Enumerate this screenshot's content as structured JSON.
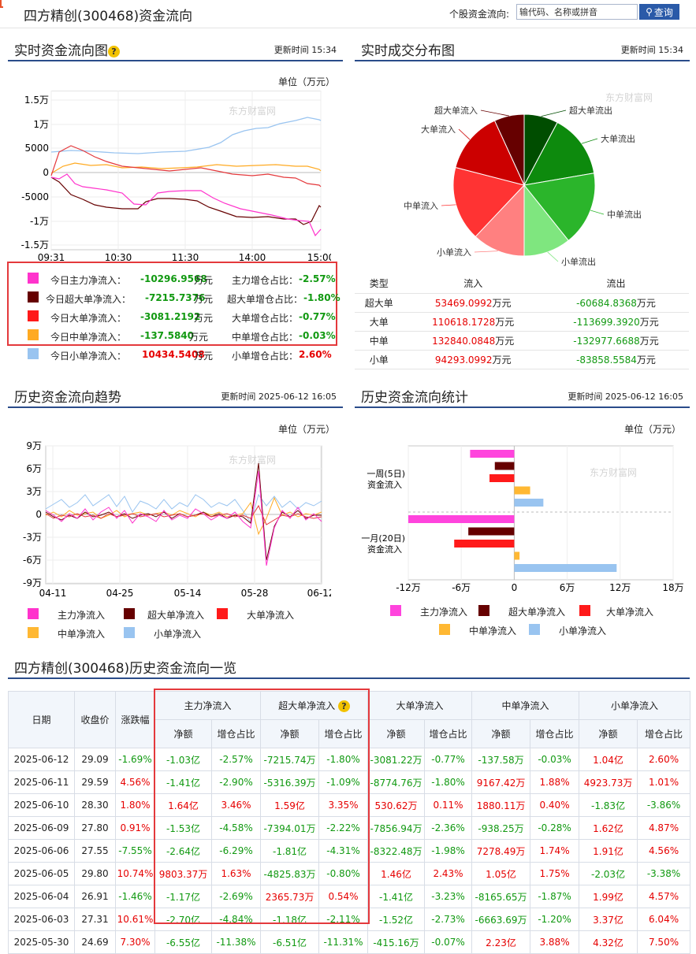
{
  "header": {
    "title": "四方精创(300468)资金流向",
    "search_label": "个股资金流向:",
    "search_placeholder": "输代码、名称或拼音",
    "search_button": "查询"
  },
  "realtime": {
    "title": "实时资金流向图",
    "update": "更新时间 15:34",
    "unit": "单位（万元）",
    "yticks": [
      "1.5万",
      "1万",
      "5000",
      "0",
      "-5000",
      "-1万",
      "-1.5万"
    ],
    "xticks": [
      "09:31",
      "10:30",
      "11:30",
      "14:00",
      "15:00"
    ],
    "legend": [
      {
        "label": "今日主力净流入：",
        "value": "-10296.9568",
        "suffix": "万元",
        "ratio_label": "主力增仓占比：",
        "ratio": "-2.57%",
        "color": "#ff33cc",
        "sign": "g"
      },
      {
        "label": "今日超大单净流入：",
        "value": "-7215.7376",
        "suffix": "万元",
        "ratio_label": "超大单增仓占比：",
        "ratio": "-1.80%",
        "color": "#660000",
        "sign": "g"
      },
      {
        "label": "今日大单净流入：",
        "value": "-3081.2192",
        "suffix": "万元",
        "ratio_label": "大单增仓占比：",
        "ratio": "-0.77%",
        "color": "#ff1a1a",
        "sign": "g"
      },
      {
        "label": "今日中单净流入：",
        "value": "-137.5840",
        "suffix": "万元",
        "ratio_label": "中单增仓占比：",
        "ratio": "-0.03%",
        "color": "#ffaa22",
        "sign": "g"
      },
      {
        "label": "今日小单净流入：",
        "value": "10434.5408",
        "suffix": "万元",
        "ratio_label": "小单增仓占比：",
        "ratio": "2.60%",
        "color": "#99c4f0",
        "sign": "r"
      }
    ]
  },
  "distribution": {
    "title": "实时成交分布图",
    "update": "更新时间 15:34",
    "pie_labels": [
      "超大单流入",
      "超大单流出",
      "大单流入",
      "大单流出",
      "中单流入",
      "中单流出",
      "小单流入",
      "小单流出"
    ],
    "headers": [
      "类型",
      "流入",
      "流出"
    ],
    "rows": [
      {
        "type": "超大单",
        "in": "53469.0992",
        "out": "-60684.8368",
        "unit": "万元"
      },
      {
        "type": "大单",
        "in": "110618.1728",
        "out": "-113699.3920",
        "unit": "万元"
      },
      {
        "type": "中单",
        "in": "132840.0848",
        "out": "-132977.6688",
        "unit": "万元"
      },
      {
        "type": "小单",
        "in": "94293.0992",
        "out": "-83858.5584",
        "unit": "万元"
      }
    ]
  },
  "history_trend": {
    "title": "历史资金流向趋势",
    "update": "更新时间 2025-06-12 16:05",
    "unit": "单位（万元）",
    "yticks": [
      "9万",
      "6万",
      "3万",
      "0",
      "-3万",
      "-6万",
      "-9万"
    ],
    "xticks": [
      "04-11",
      "04-25",
      "05-14",
      "05-28",
      "06-12"
    ],
    "legend": [
      "主力净流入",
      "超大单净流入",
      "大单净流入",
      "中单净流入",
      "小单净流入"
    ]
  },
  "history_stats": {
    "title": "历史资金流向统计",
    "update": "更新时间 2025-06-12 16:05",
    "unit": "单位（万元）",
    "cat1": [
      "一周(5日)",
      "资金流入"
    ],
    "cat2": [
      "一月(20日)",
      "资金流入"
    ],
    "xticks": [
      "-12万",
      "-6万",
      "0",
      "6万",
      "12万",
      "18万"
    ],
    "legend": [
      "主力净流入",
      "超大单净流入",
      "大单净流入",
      "中单净流入",
      "小单净流入"
    ]
  },
  "history_table": {
    "title": "四方精创(300468)历史资金流向一览",
    "headers": {
      "date": "日期",
      "close": "收盘价",
      "chg": "涨跌幅",
      "main": "主力净流入",
      "xl": "超大单净流入",
      "l": "大单净流入",
      "m": "中单净流入",
      "s": "小单净流入",
      "net": "净额",
      "ratio": "增仓占比"
    },
    "rows": [
      [
        "2025-06-12",
        "29.09",
        "-1.69%",
        "-1.03亿",
        "-2.57%",
        "-7215.74万",
        "-1.80%",
        "-3081.22万",
        "-0.77%",
        "-137.58万",
        "-0.03%",
        "1.04亿",
        "2.60%"
      ],
      [
        "2025-06-11",
        "29.59",
        "4.56%",
        "-1.41亿",
        "-2.90%",
        "-5316.39万",
        "-1.09%",
        "-8774.76万",
        "-1.80%",
        "9167.42万",
        "1.88%",
        "4923.73万",
        "1.01%"
      ],
      [
        "2025-06-10",
        "28.30",
        "1.80%",
        "1.64亿",
        "3.46%",
        "1.59亿",
        "3.35%",
        "530.62万",
        "0.11%",
        "1880.11万",
        "0.40%",
        "-1.83亿",
        "-3.86%"
      ],
      [
        "2025-06-09",
        "27.80",
        "0.91%",
        "-1.53亿",
        "-4.58%",
        "-7394.01万",
        "-2.22%",
        "-7856.94万",
        "-2.36%",
        "-938.25万",
        "-0.28%",
        "1.62亿",
        "4.87%"
      ],
      [
        "2025-06-06",
        "27.55",
        "-7.55%",
        "-2.64亿",
        "-6.29%",
        "-1.81亿",
        "-4.31%",
        "-8322.48万",
        "-1.98%",
        "7278.49万",
        "1.74%",
        "1.91亿",
        "4.56%"
      ],
      [
        "2025-06-05",
        "29.80",
        "10.74%",
        "9803.37万",
        "1.63%",
        "-4825.83万",
        "-0.80%",
        "1.46亿",
        "2.43%",
        "1.05亿",
        "1.75%",
        "-2.03亿",
        "-3.38%"
      ],
      [
        "2025-06-04",
        "26.91",
        "-1.46%",
        "-1.17亿",
        "-2.69%",
        "2365.73万",
        "0.54%",
        "-1.41亿",
        "-3.23%",
        "-8165.65万",
        "-1.87%",
        "1.99亿",
        "4.57%"
      ],
      [
        "2025-06-03",
        "27.31",
        "10.61%",
        "-2.70亿",
        "-4.84%",
        "-1.18亿",
        "-2.11%",
        "-1.52亿",
        "-2.73%",
        "-6663.69万",
        "-1.20%",
        "3.37亿",
        "6.04%"
      ],
      [
        "2025-05-30",
        "24.69",
        "7.30%",
        "-6.55亿",
        "-11.38%",
        "-6.51亿",
        "-11.31%",
        "-415.16万",
        "-0.07%",
        "2.23亿",
        "3.88%",
        "4.32亿",
        "7.50%"
      ]
    ]
  },
  "chart_data": [
    {
      "type": "bar",
      "title": "历史资金流向统计",
      "categories": [
        "一周(5日)资金流入",
        "一月(20日)资金流入"
      ],
      "series": [
        {
          "name": "主力净流入",
          "values": [
            -5.0,
            -12.0
          ]
        },
        {
          "name": "超大单净流入",
          "values": [
            -2.2,
            -5.2
          ]
        },
        {
          "name": "大单净流入",
          "values": [
            -2.8,
            -6.8
          ]
        },
        {
          "name": "中单净流入",
          "values": [
            1.8,
            0.6
          ]
        },
        {
          "name": "小单净流入",
          "values": [
            3.3,
            11.6
          ]
        }
      ],
      "unit": "万元",
      "xlim": [
        -12,
        18
      ],
      "colors": [
        "#ff44dd",
        "#660000",
        "#ff1a1a",
        "#ffb833",
        "#99c4f0"
      ]
    },
    {
      "type": "pie",
      "title": "实时成交分布图",
      "labels": [
        "超大单流出",
        "大单流出",
        "中单流出",
        "小单流出",
        "小单流入",
        "中单流入",
        "大单流入",
        "超大单流入"
      ],
      "values": [
        60684.8368,
        113699.392,
        132977.6688,
        83858.5584,
        94293.0992,
        132840.0848,
        110618.1728,
        53469.0992
      ],
      "colors": [
        "#004d00",
        "#0d8a0d",
        "#2bb52b",
        "#7fe67f",
        "#ff8080",
        "#ff3333",
        "#cc0000",
        "#660000"
      ]
    }
  ]
}
